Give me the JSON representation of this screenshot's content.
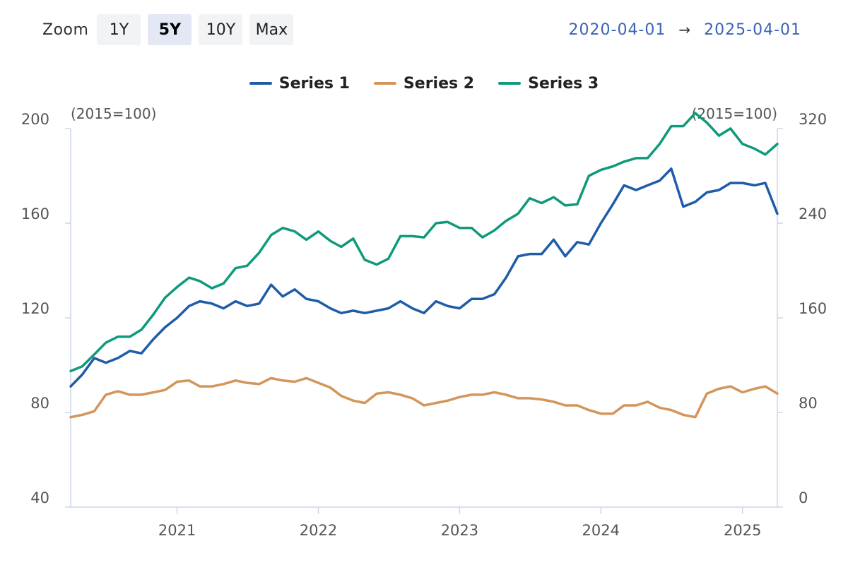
{
  "toolbar": {
    "zoom_label": "Zoom",
    "buttons": [
      {
        "label": "1Y",
        "active": false
      },
      {
        "label": "5Y",
        "active": true
      },
      {
        "label": "10Y",
        "active": false
      },
      {
        "label": "Max",
        "active": false
      }
    ]
  },
  "range": {
    "start": "2020-04-01",
    "arrow": "→",
    "end": "2025-04-01"
  },
  "colors": {
    "series1": "#1f5ca8",
    "series2": "#d4955b",
    "series3": "#0e9a7b",
    "axis": "#ccd6eb",
    "grid": "#e6e6e6"
  },
  "chart_data": {
    "type": "line",
    "title": "",
    "xlabel": "",
    "ylabel_left": "(2015=100)",
    "ylabel_right": "(2015=100)",
    "ylim_left": [
      40,
      200
    ],
    "ylim_right": [
      0,
      320
    ],
    "yticks_left": [
      "40",
      "80",
      "120",
      "160",
      "200"
    ],
    "yticks_right": [
      "0",
      "80",
      "160",
      "240",
      "320"
    ],
    "xlim": [
      "2020-04-01",
      "2025-04-01"
    ],
    "xticks": [
      "2021",
      "2022",
      "2023",
      "2024",
      "2025"
    ],
    "grid": false,
    "legend_position": "top-center",
    "x": [
      "2020-04",
      "2020-05",
      "2020-06",
      "2020-07",
      "2020-08",
      "2020-09",
      "2020-10",
      "2020-11",
      "2020-12",
      "2021-01",
      "2021-02",
      "2021-03",
      "2021-04",
      "2021-05",
      "2021-06",
      "2021-07",
      "2021-08",
      "2021-09",
      "2021-10",
      "2021-11",
      "2021-12",
      "2022-01",
      "2022-02",
      "2022-03",
      "2022-04",
      "2022-05",
      "2022-06",
      "2022-07",
      "2022-08",
      "2022-09",
      "2022-10",
      "2022-11",
      "2022-12",
      "2023-01",
      "2023-02",
      "2023-03",
      "2023-04",
      "2023-05",
      "2023-06",
      "2023-07",
      "2023-08",
      "2023-09",
      "2023-10",
      "2023-11",
      "2023-12",
      "2024-01",
      "2024-02",
      "2024-03",
      "2024-04",
      "2024-05",
      "2024-06",
      "2024-07",
      "2024-08",
      "2024-09",
      "2024-10",
      "2024-11",
      "2024-12",
      "2025-01",
      "2025-02",
      "2025-03",
      "2025-04"
    ],
    "series": [
      {
        "name": "Series 1",
        "axis": "left",
        "values": [
          91,
          96,
          103,
          101,
          103,
          106,
          105,
          111,
          116,
          120,
          125,
          127,
          126,
          124,
          127,
          125,
          126,
          134,
          129,
          132,
          128,
          127,
          124,
          122,
          123,
          122,
          123,
          124,
          127,
          124,
          122,
          127,
          125,
          124,
          128,
          128,
          130,
          137,
          146,
          147,
          147,
          153,
          146,
          152,
          151,
          160,
          168,
          176,
          174,
          176,
          178,
          183,
          167,
          169,
          173,
          174,
          177,
          177,
          176,
          177,
          164
        ]
      },
      {
        "name": "Series 2",
        "axis": "right",
        "values": [
          76,
          78,
          81,
          95,
          98,
          95,
          95,
          97,
          99,
          106,
          107,
          102,
          102,
          104,
          107,
          105,
          104,
          109,
          107,
          106,
          109,
          105,
          101,
          94,
          90,
          88,
          96,
          97,
          95,
          92,
          86,
          88,
          90,
          93,
          95,
          95,
          97,
          95,
          92,
          92,
          91,
          89,
          86,
          86,
          82,
          79,
          79,
          86,
          86,
          89,
          84,
          82,
          78,
          76,
          96,
          100,
          102,
          97,
          100,
          102,
          96
        ]
      },
      {
        "name": "Series 3",
        "axis": "right",
        "values": [
          115,
          119,
          129,
          139,
          144,
          144,
          150,
          163,
          177,
          186,
          194,
          191,
          185,
          189,
          202,
          204,
          215,
          230,
          236,
          233,
          226,
          233,
          225,
          220,
          227,
          209,
          205,
          210,
          229,
          229,
          228,
          240,
          241,
          236,
          236,
          228,
          234,
          242,
          248,
          261,
          257,
          262,
          255,
          256,
          280,
          285,
          288,
          292,
          295,
          295,
          307,
          322,
          322,
          333,
          325,
          314,
          320,
          307,
          303,
          298,
          307
        ]
      }
    ]
  }
}
